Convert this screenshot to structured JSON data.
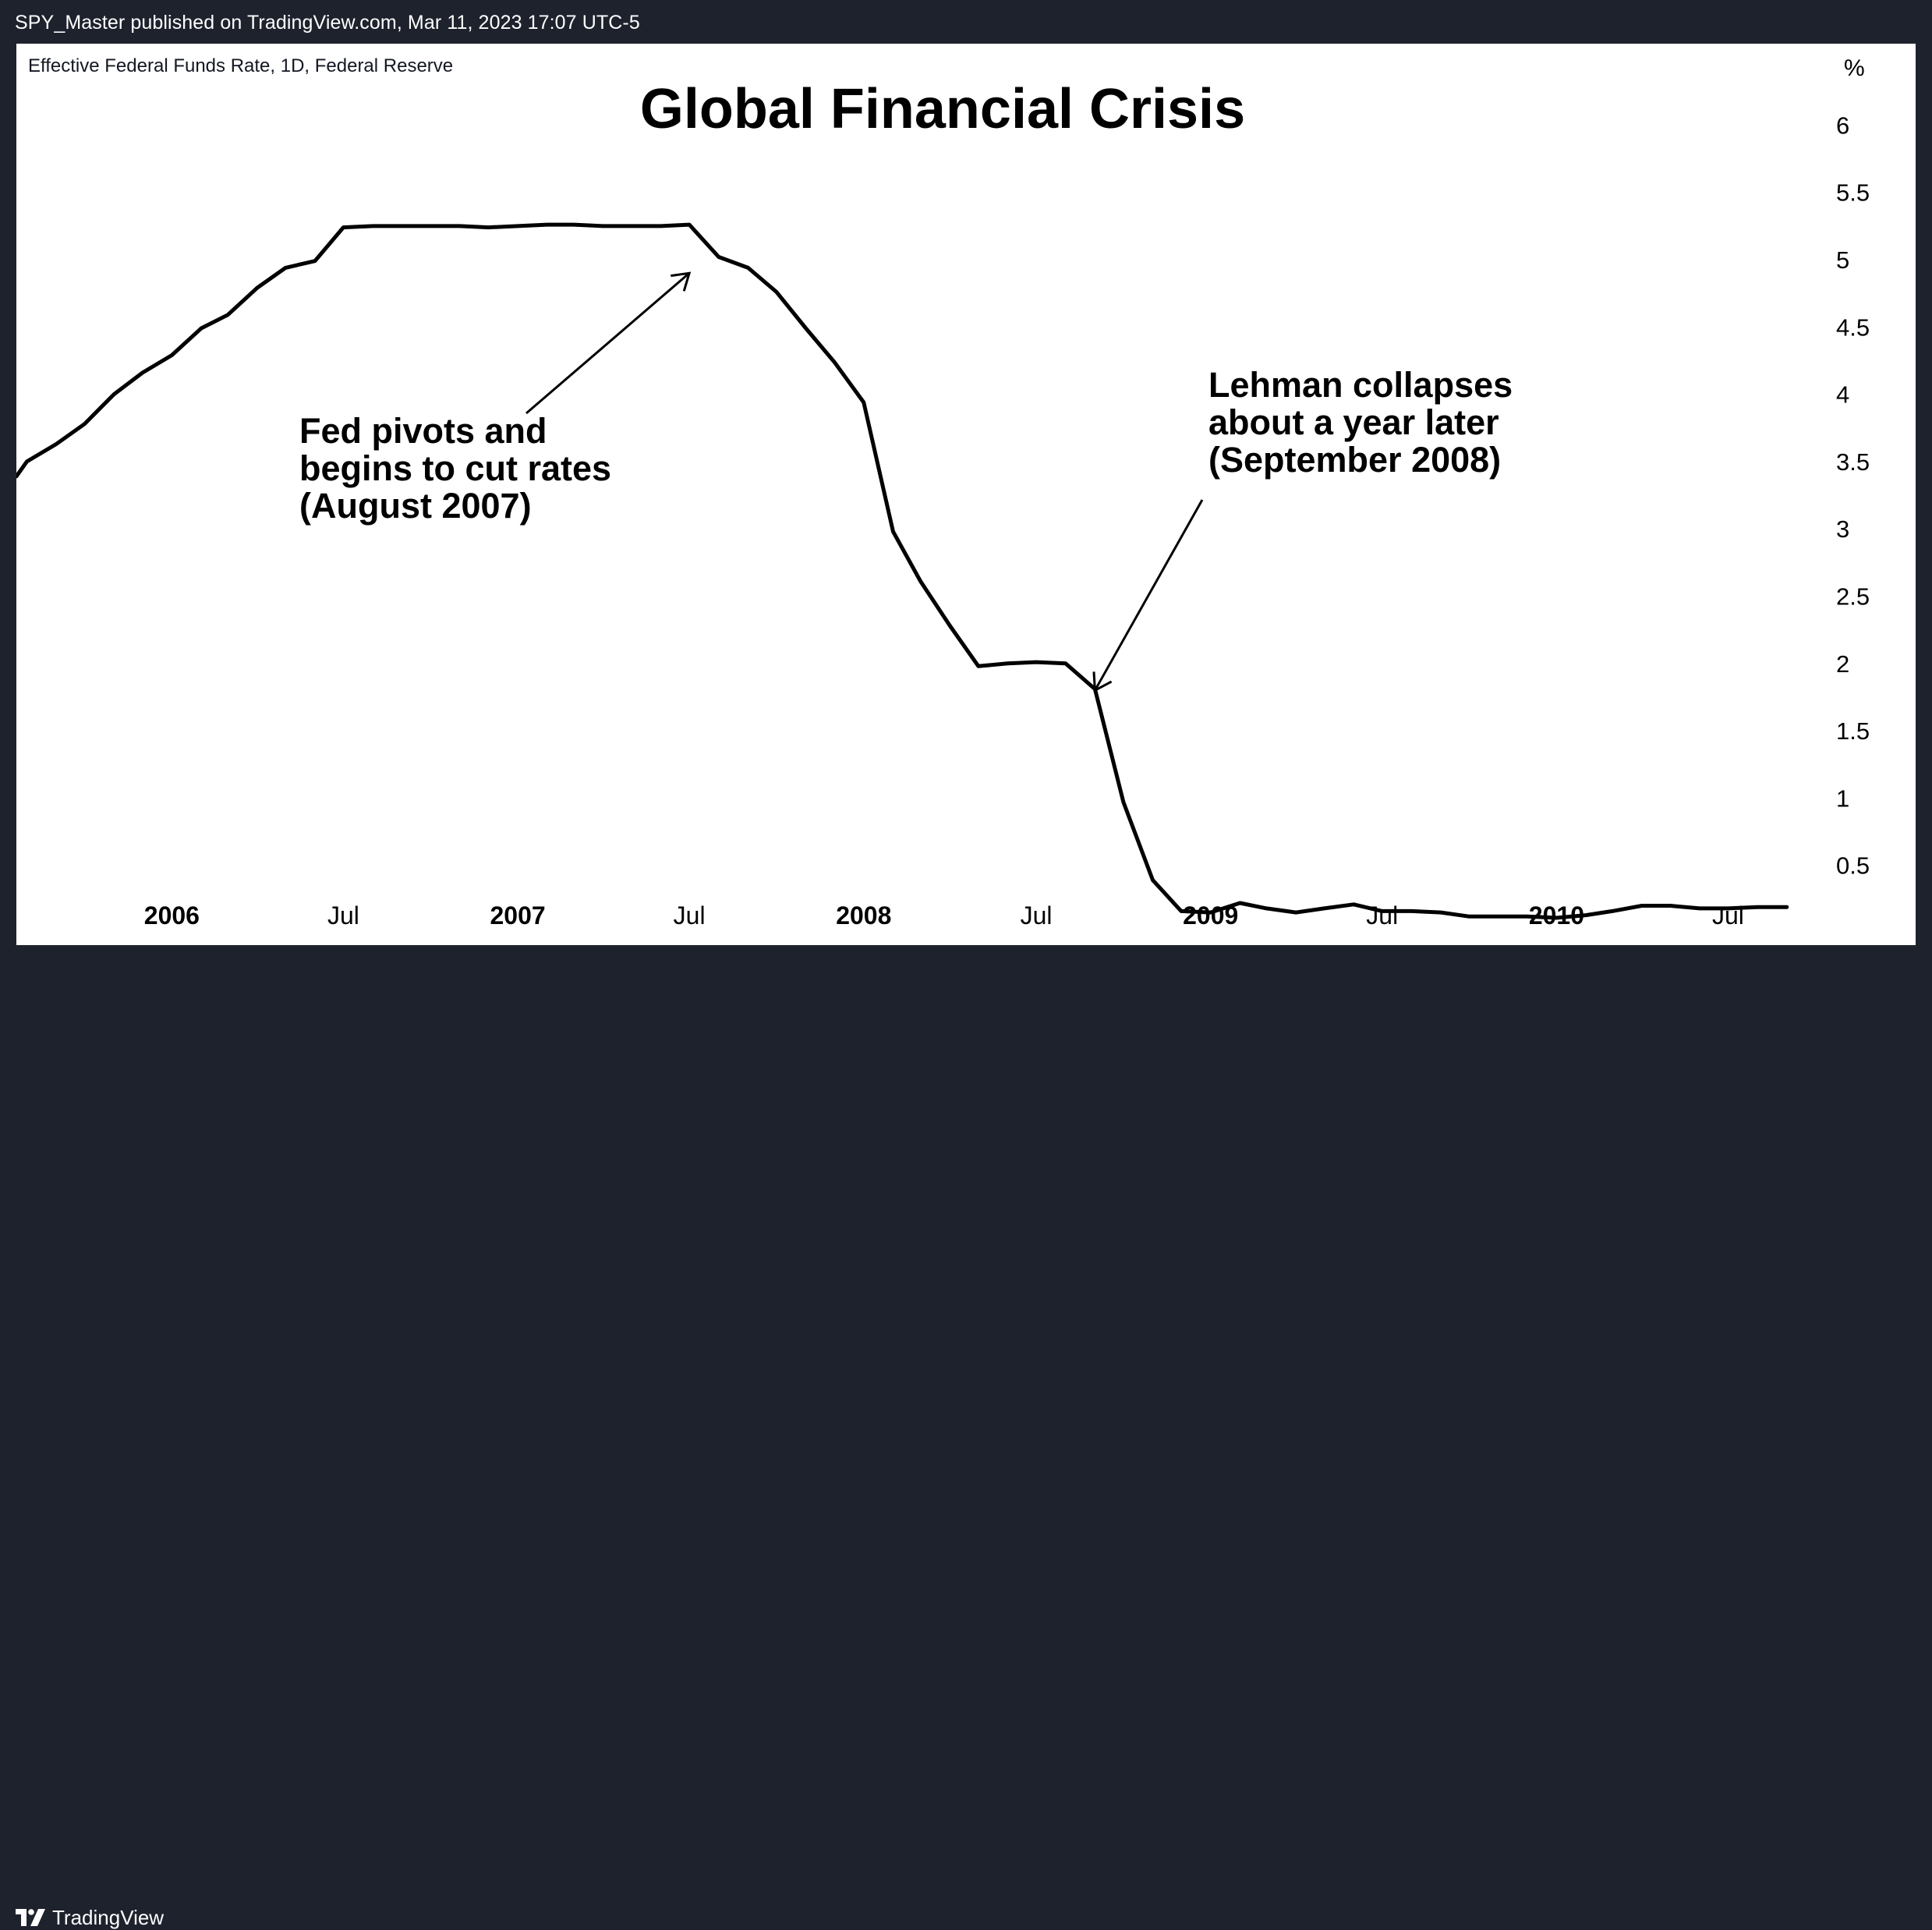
{
  "header": {
    "publish_line": "SPY_Master published on TradingView.com, Mar 11, 2023 17:07 UTC-5"
  },
  "footer": {
    "brand": "TradingView",
    "logo_icon": "tradingview-logo-icon"
  },
  "colors": {
    "frame": "#1e222d",
    "plot_background": "#ffffff",
    "series_line": "#000000",
    "text": "#000000"
  },
  "chart_data": {
    "type": "line",
    "series_label": "Effective Federal Funds Rate, 1D, Federal Reserve",
    "title": "Global Financial Crisis",
    "ylabel": "%",
    "ylim": [
      0,
      6
    ],
    "xlim": [
      "2005-07-21",
      "2010-09-25"
    ],
    "y_ticks": [
      "0.5",
      "1",
      "1.5",
      "2",
      "2.5",
      "3",
      "3.5",
      "4",
      "4.5",
      "5",
      "5.5",
      "6"
    ],
    "x_ticks": [
      {
        "label": "2006",
        "date": "2006-01-01",
        "bold": true
      },
      {
        "label": "Jul",
        "date": "2006-07-01",
        "bold": false
      },
      {
        "label": "2007",
        "date": "2007-01-01",
        "bold": true
      },
      {
        "label": "Jul",
        "date": "2007-07-01",
        "bold": false
      },
      {
        "label": "2008",
        "date": "2008-01-01",
        "bold": true
      },
      {
        "label": "Jul",
        "date": "2008-07-01",
        "bold": false
      },
      {
        "label": "2009",
        "date": "2009-01-01",
        "bold": true
      },
      {
        "label": "Jul",
        "date": "2009-07-01",
        "bold": false
      },
      {
        "label": "2010",
        "date": "2010-01-01",
        "bold": true
      },
      {
        "label": "Jul",
        "date": "2010-07-01",
        "bold": false
      }
    ],
    "series": [
      {
        "name": "Effective Federal Funds Rate",
        "color": "#000000",
        "points": [
          [
            "2005-07-21",
            3.39
          ],
          [
            "2005-08-01",
            3.5
          ],
          [
            "2005-09-01",
            3.63
          ],
          [
            "2005-10-01",
            3.78
          ],
          [
            "2005-11-01",
            4.0
          ],
          [
            "2005-12-01",
            4.16
          ],
          [
            "2006-01-01",
            4.29
          ],
          [
            "2006-02-01",
            4.49
          ],
          [
            "2006-03-01",
            4.59
          ],
          [
            "2006-04-01",
            4.79
          ],
          [
            "2006-05-01",
            4.94
          ],
          [
            "2006-06-01",
            4.99
          ],
          [
            "2006-07-01",
            5.24
          ],
          [
            "2006-08-01",
            5.25
          ],
          [
            "2006-09-01",
            5.25
          ],
          [
            "2006-10-01",
            5.25
          ],
          [
            "2006-11-01",
            5.25
          ],
          [
            "2006-12-01",
            5.24
          ],
          [
            "2007-01-01",
            5.25
          ],
          [
            "2007-02-01",
            5.26
          ],
          [
            "2007-03-01",
            5.26
          ],
          [
            "2007-04-01",
            5.25
          ],
          [
            "2007-05-01",
            5.25
          ],
          [
            "2007-06-01",
            5.25
          ],
          [
            "2007-07-01",
            5.26
          ],
          [
            "2007-08-01",
            5.02
          ],
          [
            "2007-09-01",
            4.94
          ],
          [
            "2007-10-01",
            4.76
          ],
          [
            "2007-11-01",
            4.49
          ],
          [
            "2007-12-01",
            4.24
          ],
          [
            "2008-01-01",
            3.94
          ],
          [
            "2008-02-01",
            2.98
          ],
          [
            "2008-03-01",
            2.61
          ],
          [
            "2008-04-01",
            2.28
          ],
          [
            "2008-05-01",
            1.98
          ],
          [
            "2008-06-01",
            2.0
          ],
          [
            "2008-07-01",
            2.01
          ],
          [
            "2008-08-01",
            2.0
          ],
          [
            "2008-09-01",
            1.81
          ],
          [
            "2008-10-01",
            0.97
          ],
          [
            "2008-11-01",
            0.39
          ],
          [
            "2008-12-01",
            0.16
          ],
          [
            "2009-01-01",
            0.15
          ],
          [
            "2009-02-01",
            0.22
          ],
          [
            "2009-03-01",
            0.18
          ],
          [
            "2009-04-01",
            0.15
          ],
          [
            "2009-05-01",
            0.18
          ],
          [
            "2009-06-01",
            0.21
          ],
          [
            "2009-07-01",
            0.16
          ],
          [
            "2009-08-01",
            0.16
          ],
          [
            "2009-09-01",
            0.15
          ],
          [
            "2009-10-01",
            0.12
          ],
          [
            "2009-11-01",
            0.12
          ],
          [
            "2009-12-01",
            0.12
          ],
          [
            "2010-01-01",
            0.11
          ],
          [
            "2010-02-01",
            0.13
          ],
          [
            "2010-03-01",
            0.16
          ],
          [
            "2010-04-01",
            0.2
          ],
          [
            "2010-05-01",
            0.2
          ],
          [
            "2010-06-01",
            0.18
          ],
          [
            "2010-07-01",
            0.18
          ],
          [
            "2010-08-01",
            0.19
          ],
          [
            "2010-09-01",
            0.19
          ]
        ]
      }
    ],
    "annotations": [
      {
        "id": "fed-pivot",
        "lines": [
          "Fed pivots and",
          "begins to cut rates",
          "(August 2007)"
        ],
        "arrow_to": [
          "2007-07-01",
          4.9
        ]
      },
      {
        "id": "lehman",
        "lines": [
          "Lehman collapses",
          "about a year later",
          "(September 2008)"
        ],
        "arrow_to": [
          "2008-09-01",
          1.8
        ]
      }
    ],
    "grid": false,
    "legend": "none",
    "y_axis_position": "right"
  }
}
